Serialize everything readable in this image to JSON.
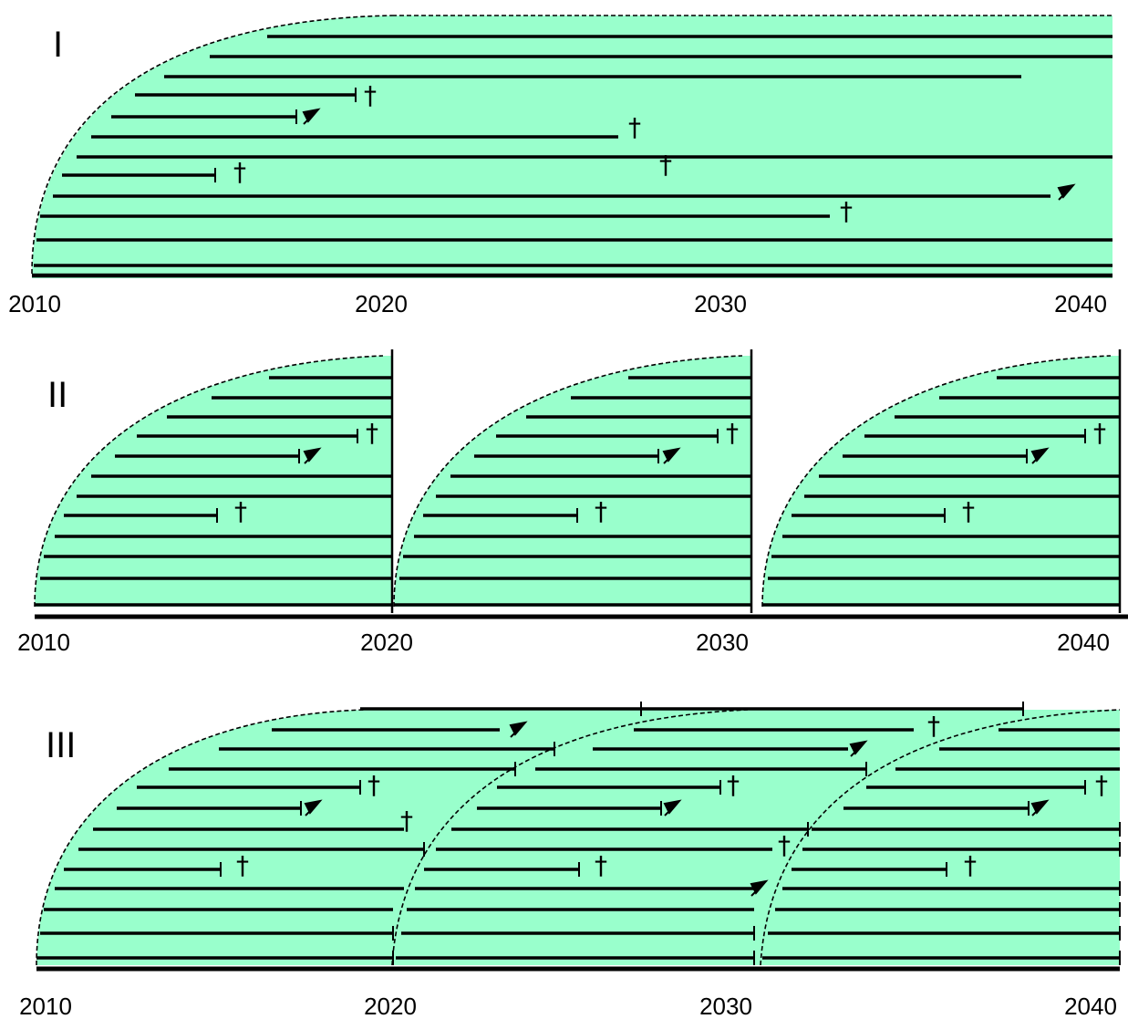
{
  "panels": [
    {
      "id": "I",
      "label": "I",
      "ticks": [
        "2010",
        "2020",
        "2030",
        "2040"
      ]
    },
    {
      "id": "II",
      "label": "II",
      "ticks": [
        "2010",
        "2020",
        "2030",
        "2040"
      ]
    },
    {
      "id": "III",
      "label": "III",
      "ticks": [
        "2010",
        "2020",
        "2030",
        "2040"
      ]
    }
  ],
  "marker_dagger": "†",
  "colors": {
    "fill": "#99ffcc",
    "line": "#000000"
  }
}
